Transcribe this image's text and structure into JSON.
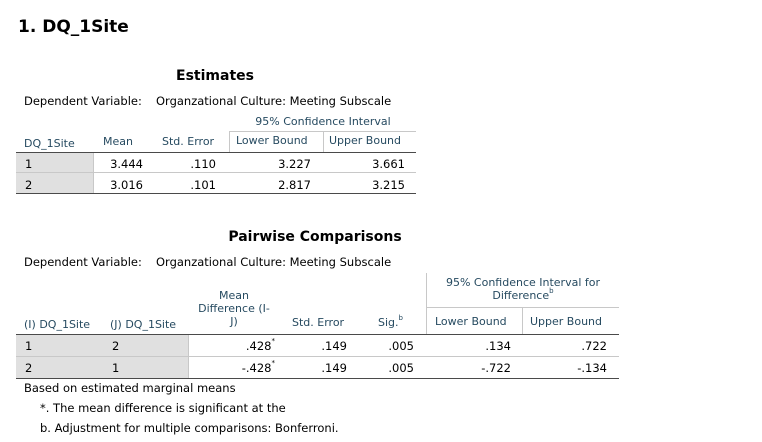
{
  "heading": "1. DQ_1Site",
  "estimates": {
    "title": "Estimates",
    "dep_var_label": "Dependent Variable:",
    "dep_var_value": "Organzational Culture: Meeting Subscale",
    "ci_header": "95% Confidence Interval",
    "columns": [
      "DQ_1Site",
      "Mean",
      "Std. Error",
      "Lower Bound",
      "Upper Bound"
    ],
    "rows": [
      {
        "site": "1",
        "mean": "3.444",
        "se": ".110",
        "lower": "3.227",
        "upper": "3.661"
      },
      {
        "site": "2",
        "mean": "3.016",
        "se": ".101",
        "lower": "2.817",
        "upper": "3.215"
      }
    ]
  },
  "pairwise": {
    "title": "Pairwise Comparisons",
    "dep_var_label": "Dependent Variable:",
    "dep_var_value": "Organzational Culture: Meeting Subscale",
    "ci_header_line1": "95% Confidence Interval for",
    "ci_header_line2": "Difference",
    "ci_header_sup": "b",
    "columns": {
      "i": "(I) DQ_1Site",
      "j": "(J) DQ_1Site",
      "md_line1": "Mean",
      "md_line2": "Difference (I-",
      "md_line3": "J)",
      "se": "Std. Error",
      "sig": "Sig.",
      "sig_sup": "b",
      "lower": "Lower Bound",
      "upper": "Upper Bound"
    },
    "rows": [
      {
        "i": "1",
        "j": "2",
        "md": ".428",
        "md_sup": "*",
        "se": ".149",
        "sig": ".005",
        "lower": ".134",
        "upper": ".722"
      },
      {
        "i": "2",
        "j": "1",
        "md": "-.428",
        "md_sup": "*",
        "se": ".149",
        "sig": ".005",
        "lower": "-.722",
        "upper": "-.134"
      }
    ],
    "footnotes": {
      "based_on": "Based on estimated marginal means",
      "star": "*. The mean difference is significant at the",
      "b": "b. Adjustment for multiple comparisons: Bonferroni."
    }
  }
}
